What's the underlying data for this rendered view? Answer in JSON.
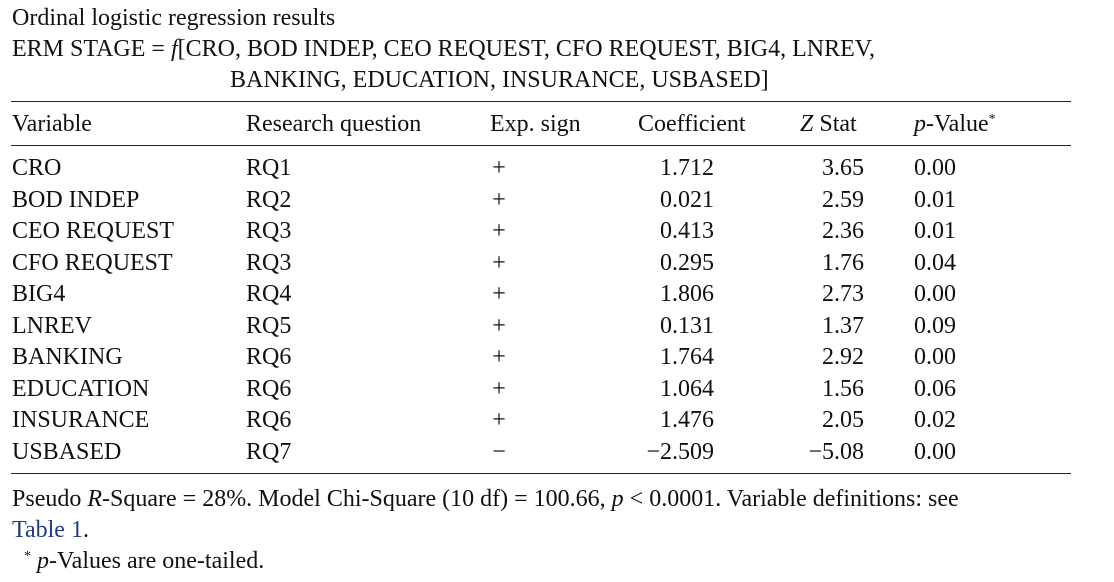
{
  "title": "Ordinal logistic regression results",
  "equation": {
    "lhs": "ERM STAGE",
    "eq": " = ",
    "f": "f",
    "rhs_line1": "[CRO,  BOD INDEP,  CEO REQUEST,  CFO REQUEST,  BIG4,  LNREV,",
    "rhs_line2": "BANKING,  EDUCATION,  INSURANCE,  USBASED]"
  },
  "table": {
    "headers": {
      "variable": "Variable",
      "research_question": "Research question",
      "exp_sign": "Exp. sign",
      "coefficient": "Coefficient",
      "z_italic": "Z",
      "z_rest": " Stat",
      "p_italic": "p",
      "p_rest": "-Value",
      "p_mark": "*"
    },
    "rows": [
      {
        "variable": "CRO",
        "rq": "RQ1",
        "sign": "+",
        "coefficient": "1.712",
        "z": "3.65",
        "p": "0.00"
      },
      {
        "variable": "BOD INDEP",
        "rq": "RQ2",
        "sign": "+",
        "coefficient": "0.021",
        "z": "2.59",
        "p": "0.01"
      },
      {
        "variable": "CEO REQUEST",
        "rq": "RQ3",
        "sign": "+",
        "coefficient": "0.413",
        "z": "2.36",
        "p": "0.01"
      },
      {
        "variable": "CFO REQUEST",
        "rq": "RQ3",
        "sign": "+",
        "coefficient": "0.295",
        "z": "1.76",
        "p": "0.04"
      },
      {
        "variable": "BIG4",
        "rq": "RQ4",
        "sign": "+",
        "coefficient": "1.806",
        "z": "2.73",
        "p": "0.00"
      },
      {
        "variable": "LNREV",
        "rq": "RQ5",
        "sign": "+",
        "coefficient": "0.131",
        "z": "1.37",
        "p": "0.09"
      },
      {
        "variable": "BANKING",
        "rq": "RQ6",
        "sign": "+",
        "coefficient": "1.764",
        "z": "2.92",
        "p": "0.00"
      },
      {
        "variable": "EDUCATION",
        "rq": "RQ6",
        "sign": "+",
        "coefficient": "1.064",
        "z": "1.56",
        "p": "0.06"
      },
      {
        "variable": "INSURANCE",
        "rq": "RQ6",
        "sign": "+",
        "coefficient": "1.476",
        "z": "2.05",
        "p": "0.02"
      },
      {
        "variable": "USBASED",
        "rq": "RQ7",
        "sign": "−",
        "coefficient": "−2.509",
        "z": "−5.08",
        "p": "0.00"
      }
    ]
  },
  "notes": {
    "pseudo_pre": "Pseudo ",
    "pseudo_r": "R",
    "pseudo_mid": "-Square = 28%. Model Chi-Square (10 df) = 100.66, ",
    "p_italic": "p",
    "pseudo_post": " < 0.0001. Variable definitions: see",
    "table_link": "Table 1",
    "period": ".",
    "footnote_mark": "*",
    "footnote_p": "p",
    "footnote_text": "-Values are one-tailed."
  },
  "colors": {
    "link": "#1f3c8c",
    "text": "#111111",
    "rule": "#222222"
  }
}
